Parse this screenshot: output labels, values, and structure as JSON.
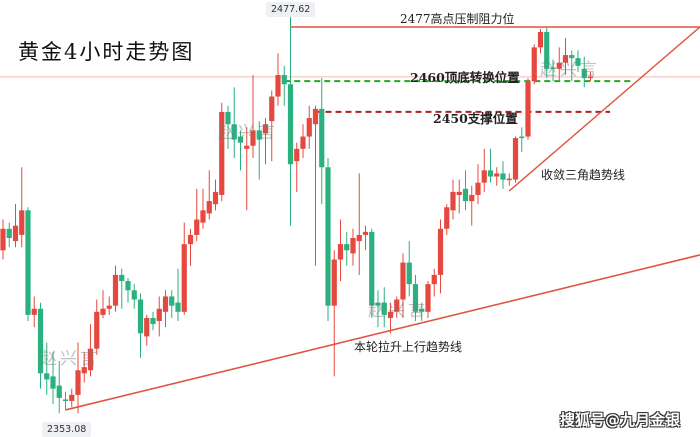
{
  "chart_data": {
    "type": "candlestick",
    "title": "黄金4小时走势图",
    "colors": {
      "up": "#e5483e",
      "down": "#2bb17f",
      "resistance": "#e0553f",
      "pivot": "#22aa22",
      "support": "#b21f1f",
      "price_line": "#f6b8b8"
    },
    "high_label": "2477.62",
    "low_label": "2353.08",
    "candles_ohlc": [
      [
        2405,
        2415,
        2402,
        2412
      ],
      [
        2412,
        2414,
        2406,
        2409
      ],
      [
        2408,
        2420,
        2406,
        2413
      ],
      [
        2410,
        2432,
        2406,
        2418
      ],
      [
        2418,
        2419,
        2382,
        2384
      ],
      [
        2384,
        2390,
        2380,
        2386
      ],
      [
        2386,
        2388,
        2360,
        2365
      ],
      [
        2365,
        2375,
        2358,
        2363
      ],
      [
        2364,
        2372,
        2355,
        2360
      ],
      [
        2361,
        2369,
        2352,
        2357
      ],
      [
        2356.5,
        2359,
        2353.08,
        2356
      ],
      [
        2356,
        2360,
        2354,
        2358
      ],
      [
        2358,
        2375,
        2352,
        2366
      ],
      [
        2365,
        2372,
        2362,
        2367
      ],
      [
        2366,
        2381,
        2364,
        2373
      ],
      [
        2373,
        2389,
        2371,
        2385
      ],
      [
        2384,
        2392,
        2383,
        2386
      ],
      [
        2386,
        2390,
        2384,
        2387
      ],
      [
        2387,
        2400,
        2385,
        2397
      ],
      [
        2397,
        2399,
        2386,
        2395
      ],
      [
        2395,
        2396,
        2388,
        2392
      ],
      [
        2392,
        2394,
        2386,
        2389
      ],
      [
        2389,
        2391,
        2370,
        2378
      ],
      [
        2377,
        2384,
        2374,
        2383
      ],
      [
        2383,
        2385,
        2379,
        2381
      ],
      [
        2382,
        2390,
        2377,
        2386
      ],
      [
        2385,
        2392,
        2380,
        2390
      ],
      [
        2390,
        2392,
        2383,
        2387
      ],
      [
        2388,
        2399,
        2382,
        2385
      ],
      [
        2385,
        2414,
        2384,
        2407
      ],
      [
        2407,
        2412,
        2400,
        2410
      ],
      [
        2410,
        2425,
        2408,
        2415
      ],
      [
        2414,
        2425,
        2412,
        2418
      ],
      [
        2417,
        2431,
        2415,
        2421
      ],
      [
        2420,
        2428,
        2418,
        2424
      ],
      [
        2423,
        2453,
        2421,
        2450
      ],
      [
        2450,
        2452,
        2438,
        2446
      ],
      [
        2446,
        2458,
        2435,
        2441
      ],
      [
        2442,
        2444,
        2431,
        2440
      ],
      [
        2438,
        2445,
        2418,
        2439
      ],
      [
        2439,
        2462,
        2435,
        2444
      ],
      [
        2444,
        2447,
        2428,
        2441
      ],
      [
        2443,
        2448,
        2433,
        2446
      ],
      [
        2447,
        2457,
        2434,
        2455
      ],
      [
        2455,
        2469,
        2452,
        2462
      ],
      [
        2462,
        2465,
        2452,
        2459
      ],
      [
        2459,
        2477.62,
        2413,
        2433
      ],
      [
        2434,
        2440,
        2424,
        2438
      ],
      [
        2438,
        2446,
        2435,
        2442
      ],
      [
        2442,
        2452,
        2438,
        2448
      ],
      [
        2446,
        2452,
        2400,
        2451
      ],
      [
        2451,
        2461,
        2420,
        2432
      ],
      [
        2432,
        2435,
        2382,
        2387
      ],
      [
        2387,
        2405,
        2364,
        2402
      ],
      [
        2402,
        2415,
        2395,
        2407
      ],
      [
        2407,
        2411,
        2400,
        2405
      ],
      [
        2404,
        2412,
        2400,
        2409
      ],
      [
        2408,
        2430,
        2397,
        2410
      ],
      [
        2410,
        2413,
        2405,
        2411
      ],
      [
        2411,
        2412,
        2383,
        2387
      ],
      [
        2388,
        2392,
        2380,
        2387
      ],
      [
        2388,
        2393,
        2380,
        2384
      ],
      [
        2383,
        2388,
        2378,
        2385
      ],
      [
        2385,
        2390,
        2383,
        2389
      ],
      [
        2389,
        2404,
        2383,
        2401
      ],
      [
        2401,
        2408,
        2390,
        2394
      ],
      [
        2394,
        2397,
        2382,
        2385
      ],
      [
        2386,
        2388,
        2382,
        2385
      ],
      [
        2385,
        2395,
        2383,
        2394
      ],
      [
        2394,
        2399,
        2390,
        2397
      ],
      [
        2397,
        2415,
        2391,
        2412
      ],
      [
        2412,
        2420,
        2410,
        2419
      ],
      [
        2418,
        2428,
        2415,
        2424
      ],
      [
        2423,
        2428,
        2417,
        2424
      ],
      [
        2425,
        2431,
        2418,
        2421
      ],
      [
        2421,
        2426,
        2413,
        2423
      ],
      [
        2423,
        2433,
        2420,
        2427
      ],
      [
        2427,
        2438,
        2424,
        2431
      ],
      [
        2431,
        2438,
        2427,
        2429
      ],
      [
        2429,
        2432,
        2426,
        2430
      ],
      [
        2430,
        2434,
        2425,
        2428
      ],
      [
        2428,
        2430,
        2426,
        2428.3
      ],
      [
        2428,
        2442,
        2427,
        2441.5
      ],
      [
        2442,
        2445,
        2437,
        2441.5
      ],
      [
        2442,
        2461,
        2441,
        2460
      ],
      [
        2460,
        2472,
        2459,
        2471
      ],
      [
        2471,
        2477,
        2469,
        2476
      ],
      [
        2476,
        2477.5,
        2461,
        2464
      ],
      [
        2464.5,
        2467,
        2460,
        2464
      ],
      [
        2464,
        2471,
        2460,
        2466
      ],
      [
        2466,
        2474,
        2462,
        2468.5
      ],
      [
        2468.5,
        2470,
        2460,
        2467.5
      ],
      [
        2467.5,
        2470,
        2463,
        2465
      ],
      [
        2464,
        2468,
        2458,
        2461
      ],
      [
        2461,
        2463,
        2460,
        2461.5
      ]
    ],
    "levels": {
      "resistance": 2477.62,
      "pivot": 2460,
      "support": 2450,
      "last_price": 2461.4
    },
    "trendlines": {
      "uptrend": [
        [
          10,
          2353.08
        ],
        [
          111.5,
          2403.5
        ]
      ],
      "triangle": [
        [
          81,
          2424.3
        ],
        [
          111.5,
          2477.6
        ]
      ]
    },
    "annotations": {
      "resistance": "2477高点压制阻力位",
      "pivot": "2460顶底转换位置",
      "support": "2450支撑位置",
      "triangle": "收敛三角趋势线",
      "uptrend": "本轮拉升上行趋势线"
    }
  },
  "watermark": "赵兴言",
  "brand": "搜狐号@九月金银"
}
